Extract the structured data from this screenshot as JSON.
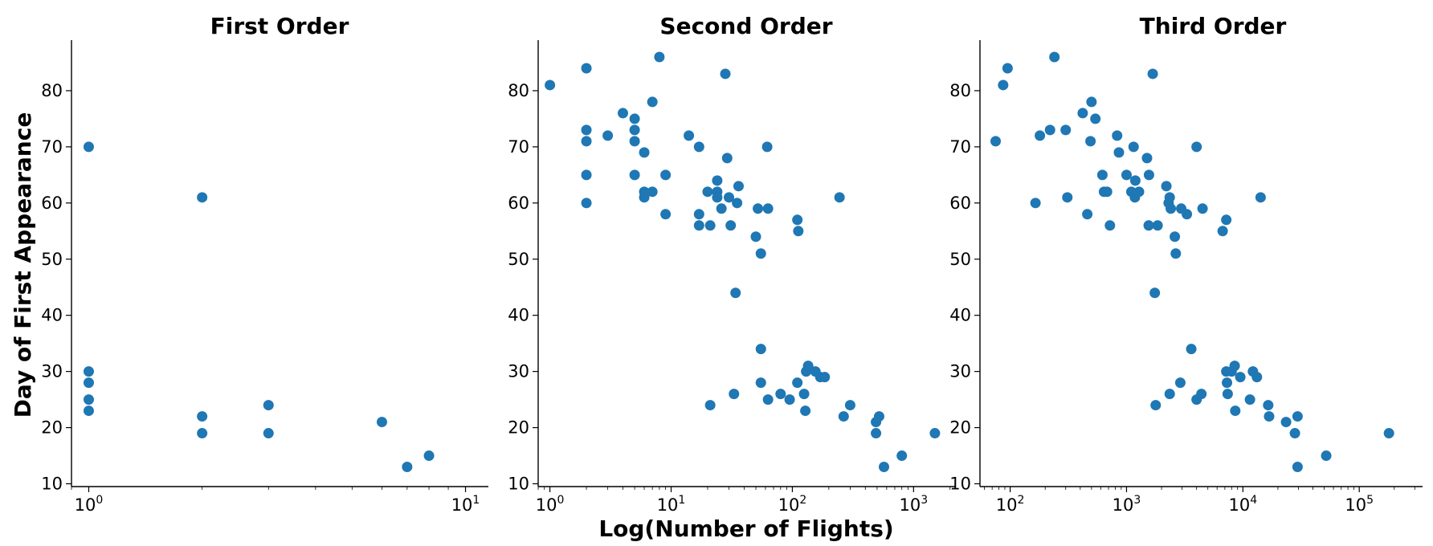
{
  "figure": {
    "ylabel": "Day of First Appearance",
    "xlabel": "Log(Number of Flights)"
  },
  "chart_data": [
    {
      "type": "scatter",
      "title": "First Order",
      "x_scale": "log",
      "xlim": [
        0.9,
        11.5
      ],
      "ylim": [
        9.5,
        89
      ],
      "x_ticks": [
        {
          "base": "10",
          "exp": "0",
          "value": 1
        },
        {
          "base": "10",
          "exp": "1",
          "value": 10
        }
      ],
      "y_ticks": [
        10,
        20,
        30,
        40,
        50,
        60,
        70,
        80
      ],
      "color": "#1f77b4",
      "points": [
        [
          1,
          70
        ],
        [
          1,
          30
        ],
        [
          1,
          28
        ],
        [
          1,
          25
        ],
        [
          1,
          23
        ],
        [
          2,
          61
        ],
        [
          2,
          22
        ],
        [
          2,
          19
        ],
        [
          3,
          24
        ],
        [
          3,
          19
        ],
        [
          6,
          21
        ],
        [
          7,
          13
        ],
        [
          8,
          15
        ]
      ]
    },
    {
      "type": "scatter",
      "title": "Second Order",
      "x_scale": "log",
      "xlim": [
        0.8,
        2200
      ],
      "ylim": [
        9.5,
        89
      ],
      "x_ticks": [
        {
          "base": "10",
          "exp": "0",
          "value": 1
        },
        {
          "base": "10",
          "exp": "1",
          "value": 10
        },
        {
          "base": "10",
          "exp": "2",
          "value": 100
        },
        {
          "base": "10",
          "exp": "3",
          "value": 1000
        }
      ],
      "y_ticks": [
        10,
        20,
        30,
        40,
        50,
        60,
        70,
        80
      ],
      "color": "#1f77b4",
      "points": [
        [
          1,
          81
        ],
        [
          2,
          84
        ],
        [
          2,
          73
        ],
        [
          2,
          71
        ],
        [
          2,
          65
        ],
        [
          2,
          60
        ],
        [
          3,
          72
        ],
        [
          4,
          76
        ],
        [
          5,
          75
        ],
        [
          5,
          73
        ],
        [
          5,
          71
        ],
        [
          5,
          65
        ],
        [
          6,
          69
        ],
        [
          6,
          62
        ],
        [
          6,
          61
        ],
        [
          7,
          78
        ],
        [
          7,
          62
        ],
        [
          8,
          86
        ],
        [
          9,
          65
        ],
        [
          9,
          58
        ],
        [
          14,
          72
        ],
        [
          17,
          70
        ],
        [
          17,
          58
        ],
        [
          17,
          56
        ],
        [
          20,
          62
        ],
        [
          21,
          56
        ],
        [
          21,
          24
        ],
        [
          24,
          64
        ],
        [
          24,
          62
        ],
        [
          24,
          61
        ],
        [
          26,
          59
        ],
        [
          28,
          83
        ],
        [
          29,
          68
        ],
        [
          30,
          61
        ],
        [
          31,
          56
        ],
        [
          33,
          26
        ],
        [
          34,
          44
        ],
        [
          35,
          60
        ],
        [
          36,
          63
        ],
        [
          50,
          54
        ],
        [
          52,
          59
        ],
        [
          55,
          51
        ],
        [
          55,
          34
        ],
        [
          55,
          28
        ],
        [
          62,
          70
        ],
        [
          63,
          59
        ],
        [
          63,
          25
        ],
        [
          80,
          26
        ],
        [
          95,
          25
        ],
        [
          110,
          57
        ],
        [
          112,
          55
        ],
        [
          110,
          28
        ],
        [
          125,
          26
        ],
        [
          128,
          23
        ],
        [
          130,
          30
        ],
        [
          135,
          31
        ],
        [
          155,
          30
        ],
        [
          170,
          29
        ],
        [
          185,
          29
        ],
        [
          245,
          61
        ],
        [
          265,
          22
        ],
        [
          300,
          24
        ],
        [
          490,
          21
        ],
        [
          520,
          22
        ],
        [
          490,
          19
        ],
        [
          570,
          13
        ],
        [
          800,
          15
        ],
        [
          1500,
          19
        ]
      ]
    },
    {
      "type": "scatter",
      "title": "Third Order",
      "x_scale": "log",
      "xlim": [
        55,
        350000
      ],
      "ylim": [
        9.5,
        89
      ],
      "x_ticks": [
        {
          "base": "10",
          "exp": "2",
          "value": 100
        },
        {
          "base": "10",
          "exp": "3",
          "value": 1000
        },
        {
          "base": "10",
          "exp": "4",
          "value": 10000
        },
        {
          "base": "10",
          "exp": "5",
          "value": 100000
        }
      ],
      "y_ticks": [
        10,
        20,
        30,
        40,
        50,
        60,
        70,
        80
      ],
      "color": "#1f77b4",
      "points": [
        [
          75,
          71
        ],
        [
          87,
          81
        ],
        [
          95,
          84
        ],
        [
          165,
          60
        ],
        [
          180,
          72
        ],
        [
          220,
          73
        ],
        [
          240,
          86
        ],
        [
          300,
          73
        ],
        [
          310,
          61
        ],
        [
          420,
          76
        ],
        [
          460,
          58
        ],
        [
          490,
          71
        ],
        [
          500,
          78
        ],
        [
          540,
          75
        ],
        [
          620,
          65
        ],
        [
          640,
          62
        ],
        [
          680,
          62
        ],
        [
          720,
          56
        ],
        [
          830,
          72
        ],
        [
          860,
          69
        ],
        [
          1000,
          65
        ],
        [
          1100,
          62
        ],
        [
          1150,
          70
        ],
        [
          1180,
          61
        ],
        [
          1190,
          64
        ],
        [
          1280,
          62
        ],
        [
          1500,
          68
        ],
        [
          1550,
          56
        ],
        [
          1560,
          65
        ],
        [
          1680,
          83
        ],
        [
          1750,
          44
        ],
        [
          1780,
          24
        ],
        [
          1850,
          56
        ],
        [
          2200,
          63
        ],
        [
          2300,
          60
        ],
        [
          2350,
          61
        ],
        [
          2350,
          26
        ],
        [
          2400,
          59
        ],
        [
          2600,
          54
        ],
        [
          2650,
          51
        ],
        [
          2900,
          28
        ],
        [
          2950,
          59
        ],
        [
          3300,
          58
        ],
        [
          3600,
          34
        ],
        [
          4000,
          70
        ],
        [
          4000,
          25
        ],
        [
          4400,
          26
        ],
        [
          4500,
          59
        ],
        [
          6700,
          55
        ],
        [
          7200,
          57
        ],
        [
          7200,
          30
        ],
        [
          7300,
          28
        ],
        [
          7400,
          26
        ],
        [
          8000,
          30
        ],
        [
          8500,
          31
        ],
        [
          8600,
          23
        ],
        [
          9500,
          29
        ],
        [
          11500,
          25
        ],
        [
          12200,
          30
        ],
        [
          13200,
          29
        ],
        [
          14200,
          61
        ],
        [
          16500,
          24
        ],
        [
          16800,
          22
        ],
        [
          23500,
          21
        ],
        [
          28000,
          19
        ],
        [
          29500,
          22
        ],
        [
          29500,
          13
        ],
        [
          52000,
          15
        ],
        [
          180000,
          19
        ]
      ]
    }
  ]
}
